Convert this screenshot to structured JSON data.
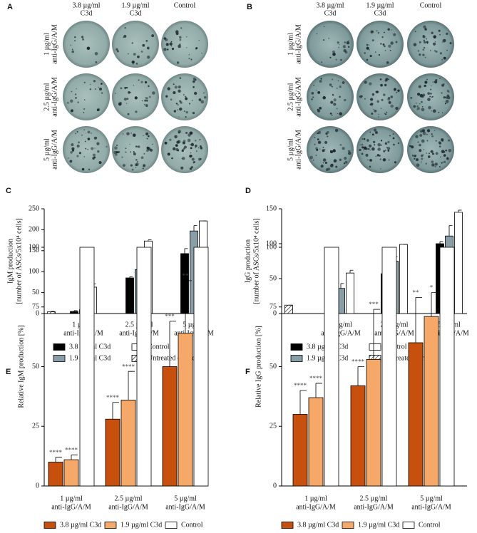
{
  "image_panels": [
    {
      "label": "A",
      "columns": [
        [
          "3.8 µg/ml",
          "C3d"
        ],
        [
          "1.9 µg/ml",
          "C3d"
        ],
        [
          "Control"
        ]
      ],
      "rows": [
        [
          "1 µg/ml",
          "anti-IgG/A/M"
        ],
        [
          "2.5 µg/ml",
          "anti-IgG/A/M"
        ],
        [
          "5 µg/ml",
          "anti-IgG/A/M"
        ]
      ]
    },
    {
      "label": "B",
      "columns": [
        [
          "3.8 µg/ml",
          "C3d"
        ],
        [
          "1.9 µg/ml",
          "C3d"
        ],
        [
          "Control"
        ]
      ],
      "rows": [
        [
          "1 µg/ml",
          "anti-IgG/A/M"
        ],
        [
          "2.5 µg/ml",
          "anti-IgG/A/M"
        ],
        [
          "5 µg/ml",
          "anti-IgG/A/M"
        ]
      ]
    }
  ],
  "chart_data": [
    {
      "panel": "C",
      "type": "bar",
      "ylabel": [
        "IgM production",
        "[number of ASCs/5x10⁴ cells]"
      ],
      "categories": [
        null,
        [
          "1 µg/ml",
          "anti-IgG/A/M"
        ],
        [
          "2.5 µg/ml",
          "anti-IgG/A/M"
        ],
        [
          "5 µg/ml",
          "anti-IgG/A/M"
        ]
      ],
      "series": [
        {
          "name": "3.8 µg/ml C3d",
          "color": "#000000",
          "values": [
            null,
            5,
            85,
            143
          ],
          "errors": [
            null,
            2,
            3,
            12
          ]
        },
        {
          "name": "1.9 µg/ml C3d",
          "color": "#8a9ea8",
          "values": [
            null,
            9,
            105,
            197
          ],
          "errors": [
            null,
            1,
            8,
            13
          ]
        },
        {
          "name": "Control",
          "color": "#ffffff",
          "values": [
            null,
            63,
            173,
            221
          ],
          "errors": [
            null,
            8,
            3,
            0
          ]
        },
        {
          "name": "Untreated control",
          "color": "#ffffff",
          "hatch": true,
          "values": [
            4,
            null,
            null,
            null
          ],
          "errors": [
            1,
            null,
            null,
            null
          ]
        }
      ],
      "ylim": [
        0,
        250
      ],
      "yticks": [
        0,
        50,
        100,
        150,
        200,
        250
      ]
    },
    {
      "panel": "D",
      "type": "bar",
      "ylabel": [
        "IgG production",
        "[number of ASCs/5x10⁴ cells]"
      ],
      "categories": [
        null,
        [
          "1 µg/ml",
          "anti-IgG/A/M"
        ],
        [
          "2.5 µg/ml",
          "anti-IgG/A/M"
        ],
        [
          "5 µg/ml",
          "anti-IgG/A/M"
        ]
      ],
      "series": [
        {
          "name": "3.8 µg/ml C3d",
          "color": "#000000",
          "values": [
            null,
            26,
            57,
            100
          ],
          "errors": [
            null,
            2,
            6,
            3
          ]
        },
        {
          "name": "1.9 µg/ml C3d",
          "color": "#8a9ea8",
          "values": [
            null,
            36,
            75,
            111
          ],
          "errors": [
            null,
            7,
            6,
            15
          ]
        },
        {
          "name": "Control",
          "color": "#ffffff",
          "values": [
            null,
            58,
            99,
            145
          ],
          "errors": [
            null,
            4,
            0,
            3
          ]
        },
        {
          "name": "Untreated control",
          "color": "#ffffff",
          "hatch": true,
          "values": [
            12,
            null,
            null,
            null
          ],
          "errors": [
            0,
            null,
            null,
            null
          ]
        }
      ],
      "ylim": [
        0,
        150
      ],
      "yticks": [
        0,
        50,
        100,
        150
      ]
    },
    {
      "panel": "E",
      "type": "bar",
      "ylabel": "Relative IgM production [%]",
      "categories": [
        [
          "1 µg/ml",
          "anti-IgG/A/M"
        ],
        [
          "2.5 µg/ml",
          "anti-IgG/A/M"
        ],
        [
          "5 µg/ml",
          "anti-IgG/A/M"
        ]
      ],
      "series": [
        {
          "name": "3.8 µg/ml C3d",
          "color": "#c8500f",
          "values": [
            10,
            28,
            50
          ],
          "errors": [
            2,
            7,
            19
          ],
          "stars": [
            "****",
            "****",
            "***"
          ]
        },
        {
          "name": "1.9 µg/ml C3d",
          "color": "#f5a867",
          "values": [
            11,
            36,
            64
          ],
          "errors": [
            2,
            12,
            22
          ],
          "stars": [
            "****",
            "****",
            "**"
          ]
        },
        {
          "name": "Control",
          "color": "#ffffff",
          "values": [
            100,
            100,
            100
          ]
        }
      ],
      "ylim": [
        0,
        100
      ],
      "yticks": [
        0,
        25,
        50,
        75,
        100
      ]
    },
    {
      "panel": "F",
      "type": "bar",
      "ylabel": "Relative IgG production [%]",
      "categories": [
        [
          "1 µg/ml",
          "anti-IgG/A/M"
        ],
        [
          "2.5 µg/ml",
          "anti-IgG/A/M"
        ],
        [
          "5 µg/ml",
          "anti-IgG/A/M"
        ]
      ],
      "series": [
        {
          "name": "3.8 µg/ml C3d",
          "color": "#c8500f",
          "values": [
            30,
            42,
            60
          ],
          "errors": [
            10,
            8,
            19
          ],
          "stars": [
            "****",
            "****",
            "**"
          ]
        },
        {
          "name": "1.9 µg/ml C3d",
          "color": "#f5a867",
          "values": [
            37,
            53,
            71
          ],
          "errors": [
            6,
            21,
            10
          ],
          "stars": [
            "****",
            "***",
            "*"
          ]
        },
        {
          "name": "Control",
          "color": "#ffffff",
          "values": [
            100,
            100,
            100
          ]
        }
      ],
      "ylim": [
        0,
        100
      ],
      "yticks": [
        0,
        25,
        50,
        75,
        100
      ]
    }
  ]
}
